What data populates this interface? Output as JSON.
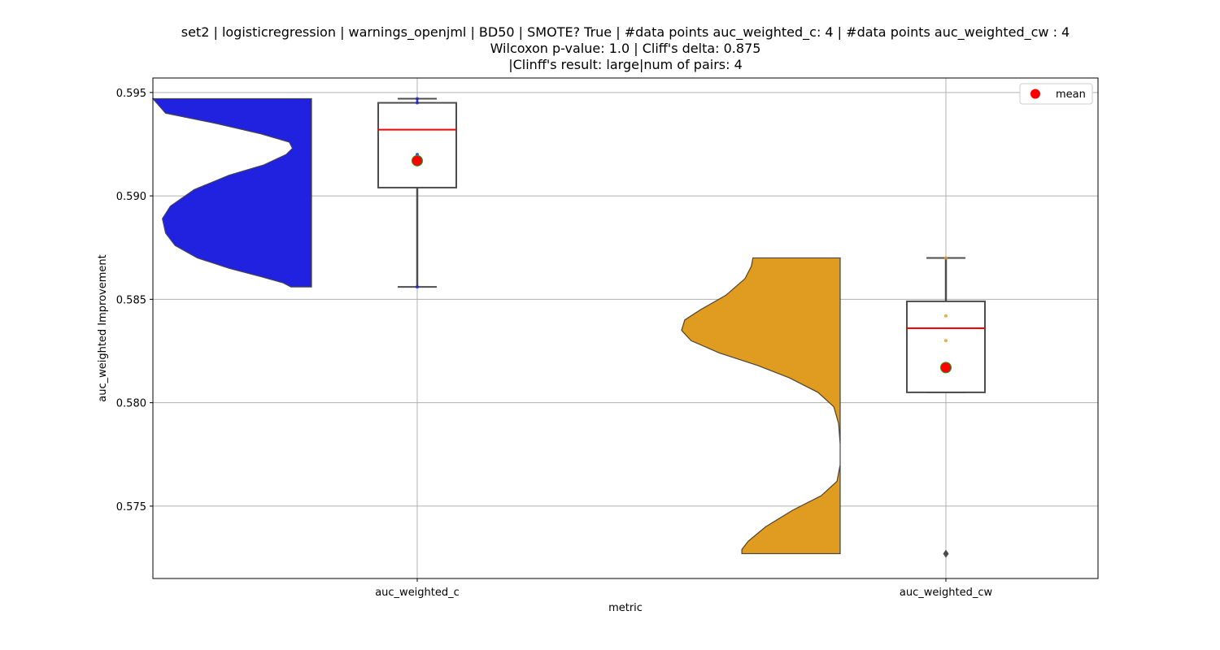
{
  "chart_data": {
    "type": "violin-box",
    "title_lines": [
      "set2 | logisticregression | warnings_openjml | BD50 | SMOTE? True | #data points auc_weighted_c: 4 | #data points auc_weighted_cw : 4",
      "Wilcoxon p-value: 1.0 | Cliff's delta: 0.875",
      "|Clinff's result: large|num of pairs: 4"
    ],
    "xlabel": "metric",
    "ylabel": "auc_weighted Improvement",
    "ylim": [
      0.5715,
      0.5957
    ],
    "yticks": [
      0.575,
      0.58,
      0.585,
      0.59,
      0.595
    ],
    "ytick_labels": [
      "0.575",
      "0.580",
      "0.585",
      "0.590",
      "0.595"
    ],
    "categories": [
      "auc_weighted_c",
      "auc_weighted_cw"
    ],
    "grid": true,
    "legend": {
      "position": "top-right",
      "entries": [
        {
          "label": "mean",
          "color": "#ff0000"
        }
      ]
    },
    "series": [
      {
        "category": "auc_weighted_c",
        "color": "#2121e0",
        "points": [
          0.5856,
          0.592,
          0.5945,
          0.5947
        ],
        "box": {
          "min": 0.5856,
          "q1": 0.5904,
          "median": 0.5932,
          "q3": 0.5945,
          "max": 0.5947
        },
        "mean": 0.5917,
        "density": [
          [
            0.5947,
            1.0
          ],
          [
            0.594,
            0.92
          ],
          [
            0.5935,
            0.6
          ],
          [
            0.593,
            0.32
          ],
          [
            0.5926,
            0.14
          ],
          [
            0.5923,
            0.12
          ],
          [
            0.592,
            0.16
          ],
          [
            0.5915,
            0.3
          ],
          [
            0.591,
            0.52
          ],
          [
            0.5903,
            0.74
          ],
          [
            0.5895,
            0.89
          ],
          [
            0.5889,
            0.94
          ],
          [
            0.5882,
            0.92
          ],
          [
            0.5876,
            0.86
          ],
          [
            0.587,
            0.72
          ],
          [
            0.5865,
            0.52
          ],
          [
            0.5861,
            0.32
          ],
          [
            0.5858,
            0.18
          ],
          [
            0.5856,
            0.13
          ]
        ]
      },
      {
        "category": "auc_weighted_cw",
        "color": "#e09c21",
        "points": [
          0.5727,
          0.583,
          0.5842,
          0.587
        ],
        "box": {
          "min": 0.5805,
          "q1": 0.5805,
          "median": 0.5836,
          "q3": 0.5849,
          "max": 0.587
        },
        "outliers": [
          0.5727
        ],
        "mean": 0.5817,
        "density": [
          [
            0.587,
            0.55
          ],
          [
            0.5866,
            0.56
          ],
          [
            0.586,
            0.6
          ],
          [
            0.5852,
            0.72
          ],
          [
            0.5845,
            0.88
          ],
          [
            0.584,
            0.98
          ],
          [
            0.5835,
            1.0
          ],
          [
            0.583,
            0.94
          ],
          [
            0.5824,
            0.76
          ],
          [
            0.5818,
            0.52
          ],
          [
            0.5812,
            0.32
          ],
          [
            0.5805,
            0.14
          ],
          [
            0.5798,
            0.04
          ],
          [
            0.579,
            0.01
          ],
          [
            0.578,
            0.0
          ],
          [
            0.577,
            0.0
          ],
          [
            0.5762,
            0.02
          ],
          [
            0.5755,
            0.12
          ],
          [
            0.5748,
            0.3
          ],
          [
            0.574,
            0.47
          ],
          [
            0.5733,
            0.58
          ],
          [
            0.5729,
            0.62
          ],
          [
            0.5727,
            0.62
          ]
        ]
      }
    ]
  }
}
